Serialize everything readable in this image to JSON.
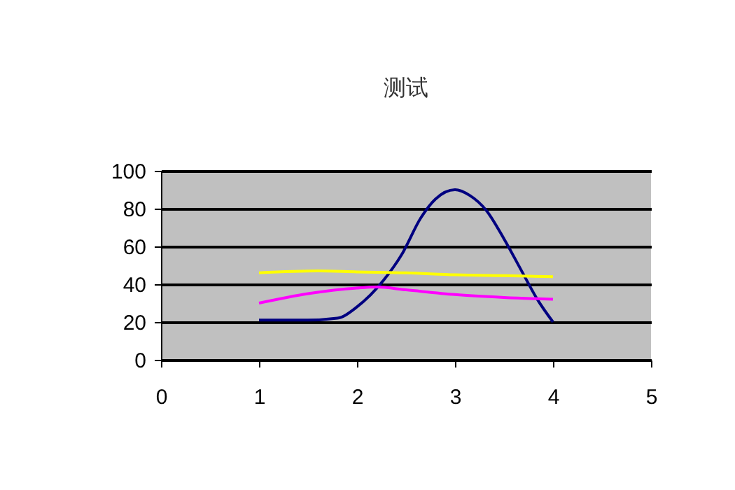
{
  "chart_data": {
    "type": "line",
    "title": "测试",
    "series": [
      {
        "color": "#000080",
        "x": [
          1,
          1.5,
          1.8,
          2,
          2.27,
          2.46,
          2.65,
          2.8,
          3,
          3.15,
          3.32,
          3.5,
          3.68,
          3.84,
          4
        ],
        "values": [
          21,
          21,
          22,
          28,
          42,
          56,
          75,
          85,
          90,
          87,
          79,
          64,
          47,
          32,
          20
        ]
      },
      {
        "color": "#ffff00",
        "x": [
          1,
          1.6,
          2,
          2.5,
          3,
          3.5,
          4
        ],
        "values": [
          46,
          47,
          46.5,
          46,
          45,
          44.5,
          44
        ]
      },
      {
        "color": "#ff00ff",
        "x": [
          1,
          1.5,
          2,
          2.2,
          2.5,
          3,
          3.5,
          4
        ],
        "values": [
          30,
          35,
          38,
          38.5,
          37,
          34.5,
          33,
          32
        ]
      }
    ],
    "xlim": [
      0,
      5
    ],
    "xticks": [
      0,
      1,
      2,
      3,
      4,
      5
    ],
    "ylim": [
      0,
      100
    ],
    "yticks": [
      0,
      20,
      40,
      60,
      80,
      100
    ],
    "grid": "y",
    "marker": "none",
    "line_style": "solid"
  }
}
